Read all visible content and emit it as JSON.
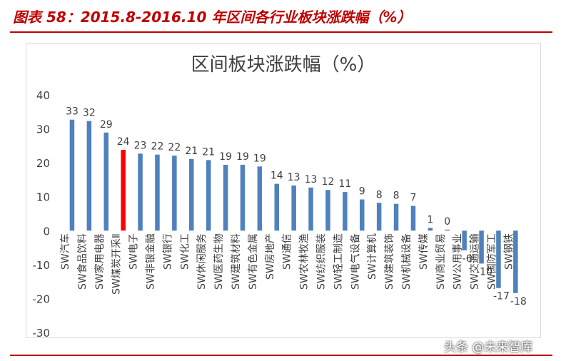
{
  "figure": {
    "caption": "图表 58：2015.8-2016.10 年区间各行业板块涨跌幅（%）"
  },
  "watermark": "头条 @未来智库",
  "colors": {
    "bar": "#4f81bd",
    "highlight": "#ff0000",
    "axis_text": "#404040",
    "caption": "#c00000"
  },
  "chart_data": {
    "type": "bar",
    "title": "区间板块涨跌幅（%）",
    "xlabel": "",
    "ylabel": "",
    "ylim": [
      -30,
      40
    ],
    "yticks": [
      40,
      30,
      20,
      10,
      0,
      -10,
      -20,
      -30
    ],
    "grid": false,
    "legend": "none",
    "highlight_category": "SW煤炭开采Ⅱ",
    "categories": [
      "SW汽车",
      "SW食品饮料",
      "SW家用电器",
      "SW煤炭开采Ⅱ",
      "SW电子",
      "SW非银金融",
      "SW银行",
      "SW化工",
      "SW休闲服务",
      "SW医药生物",
      "SW建筑材料",
      "SW有色金属",
      "SW房地产",
      "SW通信",
      "SW农林牧渔",
      "SW纺织服装",
      "SW轻工制造",
      "SW电气设备",
      "SW计算机",
      "SW建筑装饰",
      "SW机械设备",
      "SW传媒",
      "SW商业贸易",
      "SW公用事业",
      "SW交通运输",
      "SW国防军工",
      "SW钢铁"
    ],
    "values": [
      32.7,
      32.3,
      28.9,
      23.8,
      22.7,
      22.4,
      22.1,
      21.1,
      20.8,
      19.4,
      19.4,
      18.9,
      13.8,
      13.3,
      12.7,
      12.0,
      11.4,
      9.2,
      8.2,
      7.9,
      7.3,
      0.8,
      0.3,
      -5.8,
      -9.7,
      -16.9,
      -18.4
    ],
    "data_labels": [
      "33",
      "32",
      "29",
      "24",
      "23",
      "22",
      "22",
      "21",
      "21",
      "19",
      "19",
      "19",
      "14",
      "13",
      "13",
      "12",
      "11",
      "9",
      "8",
      "8",
      "7",
      "1",
      "0",
      "-6",
      "-10",
      "-17",
      "-18"
    ]
  }
}
